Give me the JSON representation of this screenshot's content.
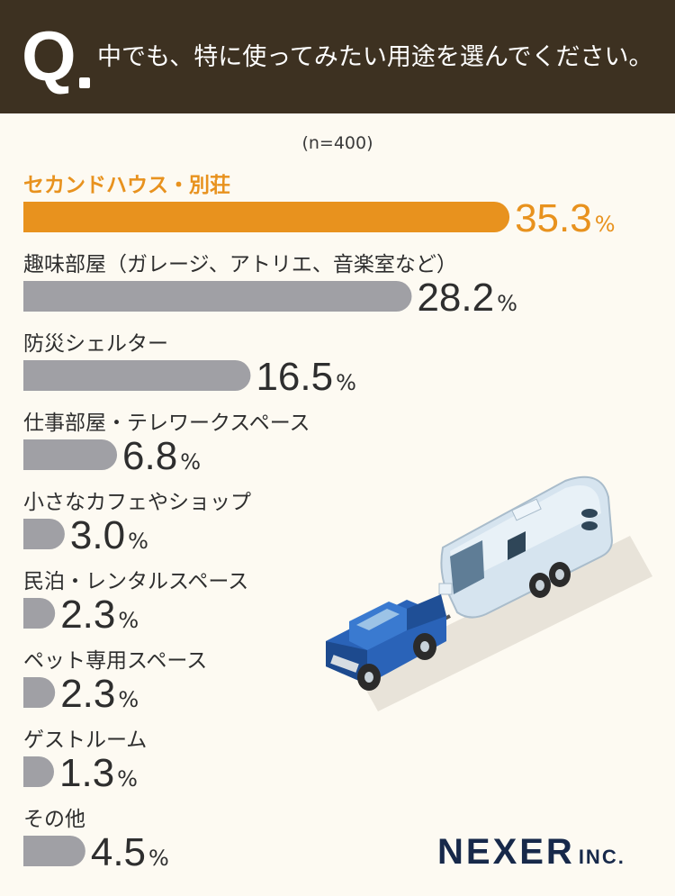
{
  "header": {
    "q_letter": "Q",
    "question": "中でも、特に使ってみたい用途を選んでください。"
  },
  "chart_data": {
    "type": "bar",
    "orientation": "horizontal",
    "sample_label": "(n=400)",
    "unit": "%",
    "highlight_color": "#e8921e",
    "bar_color": "#a0a0a5",
    "categories": [
      "セカンドハウス・別荘",
      "趣味部屋（ガレージ、アトリエ、音楽室など）",
      "防災シェルター",
      "仕事部屋・テレワークスペース",
      "小さなカフェやショップ",
      "民泊・レンタルスペース",
      "ペット専用スペース",
      "ゲストルーム",
      "その他"
    ],
    "values": [
      35.3,
      28.2,
      16.5,
      6.8,
      3.0,
      2.3,
      2.3,
      1.3,
      4.5
    ],
    "value_labels": [
      "35.3",
      "28.2",
      "16.5",
      "6.8",
      "3.0",
      "2.3",
      "2.3",
      "1.3",
      "4.5"
    ],
    "highlight_index": 0
  },
  "illustration": {
    "icon": "truck-towing-camper-trailer-icon",
    "colors": {
      "truck": "#2a63b8",
      "trailer": "#d2e2ee"
    }
  },
  "footer": {
    "logo_main": "NEXER",
    "logo_sub": "INC."
  }
}
